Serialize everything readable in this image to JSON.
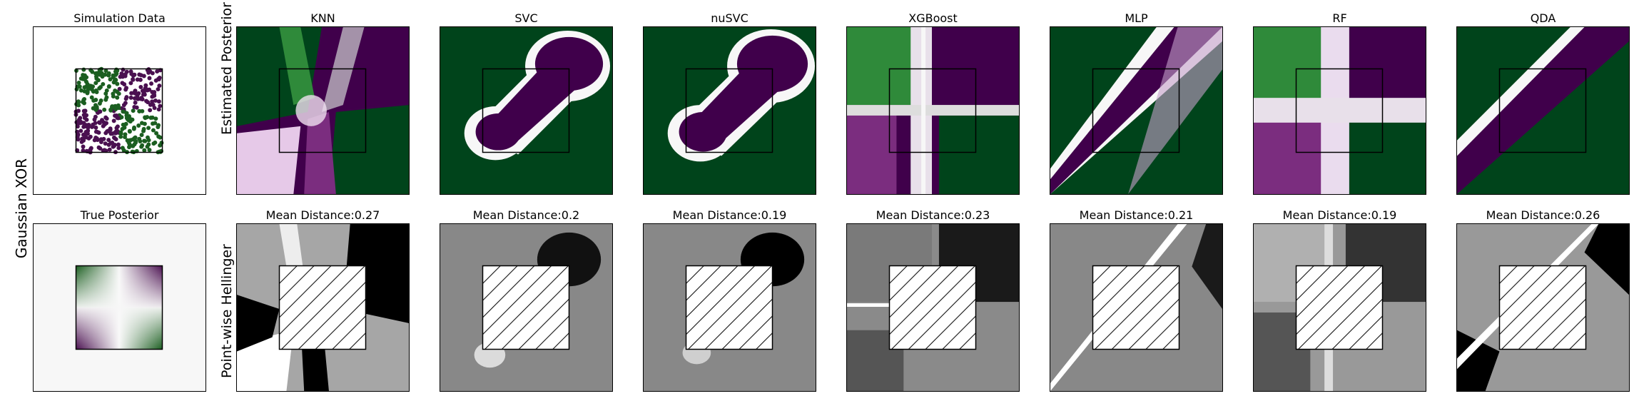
{
  "figure": {
    "row_label": "Gaussian XOR",
    "top_ylabel": "Estimated Posterior",
    "bottom_ylabel": "Point-wise Hellinger"
  },
  "chart_data": [
    {
      "type": "scatter",
      "title": "Simulation Data",
      "xlim": [
        -2,
        2
      ],
      "ylim": [
        -2,
        2
      ],
      "note_region": [
        -1,
        1
      ],
      "colors": [
        "#1b5e20",
        "#4a1050"
      ]
    },
    {
      "type": "heatmap",
      "title": "True Posterior",
      "xlim": [
        -2,
        2
      ],
      "ylim": [
        -2,
        2
      ]
    },
    {
      "type": "heatmap",
      "title": "KNN",
      "distance_label": "Mean Distance:0.27",
      "mean_distance": 0.27
    },
    {
      "type": "heatmap",
      "title": "SVC",
      "distance_label": "Mean Distance:0.2",
      "mean_distance": 0.2
    },
    {
      "type": "heatmap",
      "title": "nuSVC",
      "distance_label": "Mean Distance:0.19",
      "mean_distance": 0.19
    },
    {
      "type": "heatmap",
      "title": "XGBoost",
      "distance_label": "Mean Distance:0.23",
      "mean_distance": 0.23
    },
    {
      "type": "heatmap",
      "title": "MLP",
      "distance_label": "Mean Distance:0.21",
      "mean_distance": 0.21
    },
    {
      "type": "heatmap",
      "title": "RF",
      "distance_label": "Mean Distance:0.19",
      "mean_distance": 0.19
    },
    {
      "type": "heatmap",
      "title": "QDA",
      "distance_label": "Mean Distance:0.26",
      "mean_distance": 0.26
    }
  ],
  "colors": {
    "green": "#00441b",
    "purple": "#40004b",
    "neutral": "#f7f7f7"
  }
}
